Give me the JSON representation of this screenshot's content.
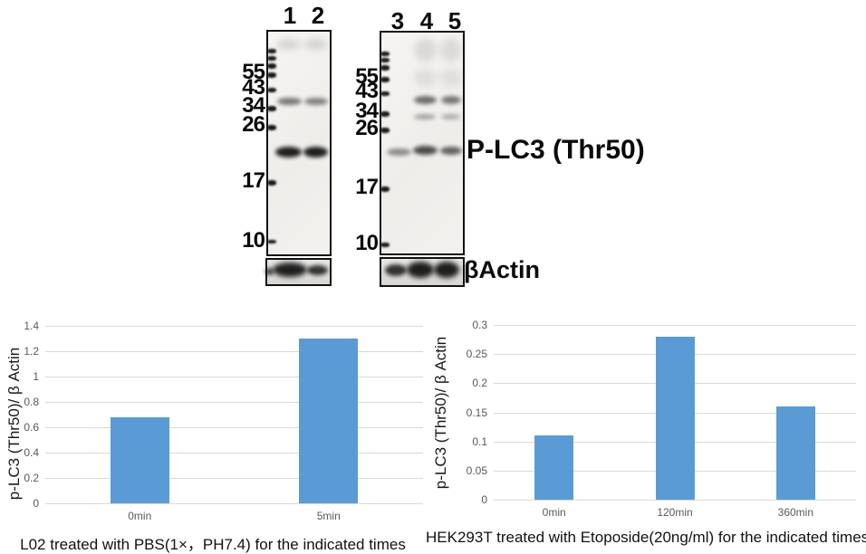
{
  "blots": {
    "markers": [
      "55",
      "43",
      "34",
      "26",
      "17",
      "10"
    ],
    "panel_a": {
      "lanes": [
        "1",
        "2"
      ]
    },
    "panel_b": {
      "lanes": [
        "3",
        "4",
        "5"
      ]
    },
    "band_label": "P-LC3 (Thr50)",
    "loading_control_label": "βActin"
  },
  "chart_data": [
    {
      "type": "bar",
      "categories": [
        "0min",
        "5min"
      ],
      "values": [
        0.68,
        1.3
      ],
      "title": "",
      "xlabel": "",
      "ylabel": "p-LC3 (Thr50)/ β Actin",
      "caption": "L02 treated with PBS(1×，PH7.4) for the indicated times",
      "ylim": [
        0,
        1.4
      ],
      "yticks": [
        0,
        0.2,
        0.4,
        0.6,
        0.8,
        1,
        1.2,
        1.4
      ],
      "ytick_labels": [
        "0",
        "0.2",
        "0.4",
        "0.6",
        "0.8",
        "1",
        "1.2",
        "1.4"
      ],
      "grid": true,
      "legend": "none",
      "bar_color": "#5B9BD5"
    },
    {
      "type": "bar",
      "categories": [
        "0min",
        "120min",
        "360min"
      ],
      "values": [
        0.11,
        0.28,
        0.16
      ],
      "title": "",
      "xlabel": "",
      "ylabel": "p-LC3 (Thr50)/ β Actin",
      "caption": "HEK293T treated with Etoposide(20ng/ml) for the indicated times",
      "ylim": [
        0,
        0.3
      ],
      "yticks": [
        0,
        0.05,
        0.1,
        0.15,
        0.2,
        0.25,
        0.3
      ],
      "ytick_labels": [
        "0",
        "0.05",
        "0.1",
        "0.15",
        "0.2",
        "0.25",
        "0.3"
      ],
      "grid": true,
      "legend": "none",
      "bar_color": "#5B9BD5"
    }
  ],
  "colors": {
    "bar": "#5B9BD5",
    "gridline": "#d9d9d9",
    "tick_text": "#595959",
    "text": "#111111"
  }
}
